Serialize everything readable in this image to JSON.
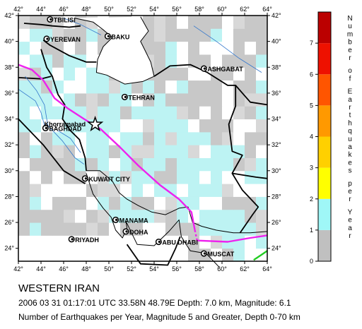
{
  "map": {
    "lon_range": [
      42,
      64
    ],
    "lat_range": [
      23,
      42
    ],
    "lon_ticks": [
      "42°",
      "44°",
      "46°",
      "48°",
      "50°",
      "52°",
      "54°",
      "56°",
      "58°",
      "60°",
      "62°",
      "64°"
    ],
    "lat_ticks": [
      "24°",
      "26°",
      "28°",
      "30°",
      "32°",
      "34°",
      "36°",
      "38°",
      "40°",
      "42°"
    ],
    "cities": [
      {
        "name": "TBILISI",
        "lon": 44.8,
        "lat": 41.7
      },
      {
        "name": "YEREVAN",
        "lon": 44.5,
        "lat": 40.2
      },
      {
        "name": "BAKU",
        "lon": 49.9,
        "lat": 40.4
      },
      {
        "name": "ASHGABAT",
        "lon": 58.4,
        "lat": 37.9
      },
      {
        "name": "TEHRAN",
        "lon": 51.4,
        "lat": 35.7
      },
      {
        "name": "BAGHDAD",
        "lon": 44.4,
        "lat": 33.3
      },
      {
        "name": "KUWAIT CITY",
        "lon": 47.9,
        "lat": 29.4
      },
      {
        "name": "MANAMA",
        "lon": 50.6,
        "lat": 26.2
      },
      {
        "name": "DOHA",
        "lon": 51.5,
        "lat": 25.3
      },
      {
        "name": "RIYADH",
        "lon": 46.7,
        "lat": 24.7
      },
      {
        "name": "ABU DHABI",
        "lon": 54.4,
        "lat": 24.5
      },
      {
        "name": "MUSCAT",
        "lon": 58.4,
        "lat": 23.6
      }
    ],
    "epicenter": {
      "name": "Khorramabad",
      "lon": 48.79,
      "lat": 33.58
    },
    "colors": {
      "land_gray": "#c8c8c8",
      "cyan": "#bdf3f3",
      "white": "#ffffff",
      "plate_boundary": "#ee22ee",
      "border": "#000000",
      "river": "#3377cc",
      "green_segment": "#22cc22"
    }
  },
  "colorbar": {
    "title": "Number of Earthquakes per Year",
    "ticks": [
      "0",
      "1",
      "2",
      "3",
      "4",
      "5",
      "6",
      "7"
    ],
    "colors": [
      "#c0c0c0",
      "#9ff7f7",
      "#ffff00",
      "#ffd000",
      "#ff9900",
      "#ff5500",
      "#ee1100",
      "#bb0000"
    ]
  },
  "caption": {
    "title": "WESTERN IRAN",
    "event": "2006 03 31 01:17:01 UTC 33.58N 48.79E Depth: 7.0 km, Magnitude: 6.1",
    "description": "Number of Earthquakes per Year, Magnitude 5 and Greater, Depth 0-70 km"
  }
}
